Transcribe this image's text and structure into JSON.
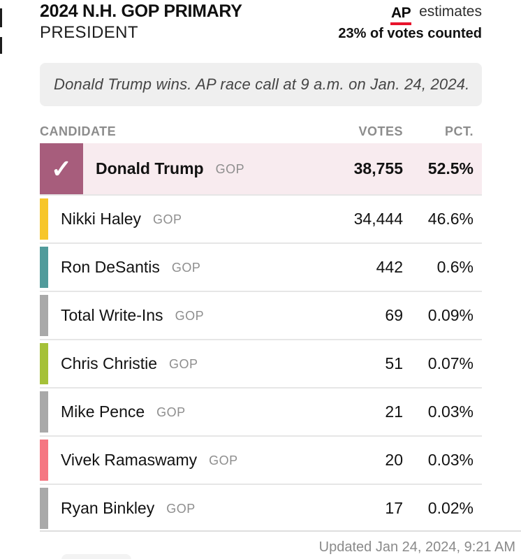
{
  "header": {
    "title": "2024 N.H. GOP PRIMARY",
    "subtitle": "PRESIDENT",
    "ap_logo": "AP",
    "estimates_label": "estimates",
    "counted_label": "23% of votes counted"
  },
  "race_call": {
    "text": "Donald Trump wins. AP race call at 9 a.m. on Jan. 24, 2024."
  },
  "table": {
    "columns": {
      "candidate": "CANDIDATE",
      "votes": "VOTES",
      "pct": "PCT."
    },
    "rows": [
      {
        "name": "Donald Trump",
        "party": "GOP",
        "votes": "38,755",
        "pct": "52.5%",
        "color": "#a75d7c",
        "winner": true
      },
      {
        "name": "Nikki Haley",
        "party": "GOP",
        "votes": "34,444",
        "pct": "46.6%",
        "color": "#f7c62a",
        "winner": false
      },
      {
        "name": "Ron DeSantis",
        "party": "GOP",
        "votes": "442",
        "pct": "0.6%",
        "color": "#519b9b",
        "winner": false
      },
      {
        "name": "Total Write-Ins",
        "party": "GOP",
        "votes": "69",
        "pct": "0.09%",
        "color": "#a9a9a9",
        "winner": false
      },
      {
        "name": "Chris Christie",
        "party": "GOP",
        "votes": "51",
        "pct": "0.07%",
        "color": "#a5c138",
        "winner": false
      },
      {
        "name": "Mike Pence",
        "party": "GOP",
        "votes": "21",
        "pct": "0.03%",
        "color": "#a9a9a9",
        "winner": false
      },
      {
        "name": "Vivek Ramaswamy",
        "party": "GOP",
        "votes": "20",
        "pct": "0.03%",
        "color": "#f57782",
        "winner": false
      },
      {
        "name": "Ryan Binkley",
        "party": "GOP",
        "votes": "17",
        "pct": "0.02%",
        "color": "#a9a9a9",
        "winner": false
      }
    ]
  },
  "footer": {
    "updated": "Updated Jan 24, 2024, 9:21 AM"
  },
  "icons": {
    "check": "✓"
  },
  "colors": {
    "winner_row_bg": "#f8ebef",
    "winner_swatch": "#a75d7c",
    "ap_red": "#e8132b",
    "separator": "#e6e6e6",
    "muted_text": "#8c8c8c"
  },
  "chart_data": {
    "type": "table",
    "title": "2024 N.H. GOP PRIMARY",
    "subtitle": "PRESIDENT",
    "source": "AP estimates",
    "votes_counted_pct": 23,
    "race_call": "Donald Trump wins. AP race call at 9 a.m. on Jan. 24, 2024.",
    "columns": [
      "CANDIDATE",
      "VOTES",
      "PCT."
    ],
    "categories": [
      "Donald Trump",
      "Nikki Haley",
      "Ron DeSantis",
      "Total Write-Ins",
      "Chris Christie",
      "Mike Pence",
      "Vivek Ramaswamy",
      "Ryan Binkley"
    ],
    "series": [
      {
        "name": "VOTES",
        "values": [
          38755,
          34444,
          442,
          69,
          51,
          21,
          20,
          17
        ]
      },
      {
        "name": "PCT",
        "values": [
          52.5,
          46.6,
          0.6,
          0.09,
          0.07,
          0.03,
          0.03,
          0.02
        ]
      }
    ],
    "winner": "Donald Trump",
    "updated": "Updated Jan 24, 2024, 9:21 AM"
  }
}
